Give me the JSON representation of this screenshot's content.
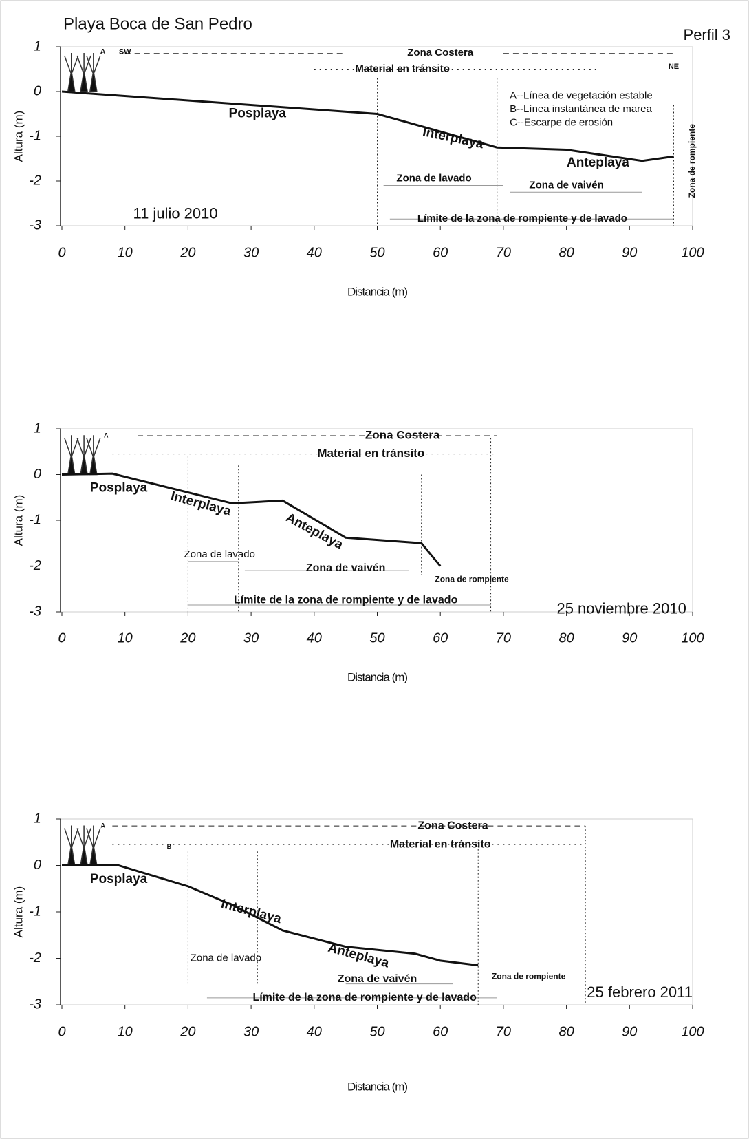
{
  "chart_data": [
    {
      "type": "line",
      "title": "Playa Boca de San Pedro",
      "subtitle": "Perfil 3",
      "x_label": "Distancia (m)",
      "y_label": "Altura (m)",
      "xlim": [
        0,
        100
      ],
      "ylim": [
        -3,
        1
      ],
      "xticks": [
        0,
        10,
        20,
        30,
        40,
        50,
        60,
        70,
        80,
        90,
        100
      ],
      "yticks": [
        -3,
        -2,
        -1,
        0,
        1
      ],
      "series": [
        {
          "color": "#111111",
          "x": [
            0,
            50,
            69,
            80,
            92,
            97
          ],
          "values": [
            0,
            -0.5,
            -1.25,
            -1.3,
            -1.55,
            -1.45
          ]
        }
      ],
      "annotations": [
        "A",
        "SW",
        "Zona Costera",
        "NE",
        "Material en tránsito",
        "Posplaya",
        "Interplaya",
        "Anteplaya",
        "A--Línea de vegetación estable",
        "B--Línea instantánea de marea",
        "C--Escarpe de erosión",
        "Zona de lavado",
        "Zona de vaivén",
        "Zona de rompiente",
        "Límite de la zona de rompiente y  de lavado",
        "11 julio  2010"
      ]
    },
    {
      "type": "line",
      "x_label": "Distancia (m)",
      "y_label": "Altura (m)",
      "xlim": [
        0,
        100
      ],
      "ylim": [
        -3,
        1
      ],
      "xticks": [
        0,
        10,
        20,
        30,
        40,
        50,
        60,
        70,
        80,
        90,
        100
      ],
      "yticks": [
        -3,
        -2,
        -1,
        0,
        1
      ],
      "series": [
        {
          "color": "#111111",
          "x": [
            0,
            8,
            27,
            35,
            45,
            57,
            60
          ],
          "values": [
            0,
            0.02,
            -0.63,
            -0.57,
            -1.38,
            -1.5,
            -2.0
          ]
        }
      ],
      "annotations": [
        "A",
        "Zona Costera",
        "Material en tránsito",
        "Posplaya",
        "Interplaya",
        "Anteplaya",
        "Zona de lavado",
        "Zona de vaivén",
        "Zona de rompiente",
        "Límite de la zona de rompiente y  de lavado",
        "25 noviembre 2010"
      ]
    },
    {
      "type": "line",
      "x_label": "Distancia (m)",
      "y_label": "Altura (m)",
      "xlim": [
        0,
        100
      ],
      "ylim": [
        -3,
        1
      ],
      "xticks": [
        0,
        10,
        20,
        30,
        40,
        50,
        60,
        70,
        80,
        90,
        100
      ],
      "yticks": [
        -3,
        -2,
        -1,
        0,
        1
      ],
      "series": [
        {
          "color": "#111111",
          "x": [
            0,
            9,
            20,
            27,
            35,
            45,
            56,
            60,
            66
          ],
          "values": [
            0,
            0,
            -0.45,
            -0.85,
            -1.4,
            -1.75,
            -1.9,
            -2.05,
            -2.15
          ]
        }
      ],
      "annotations": [
        "A",
        "B",
        "Zona Costera",
        "Material en tránsito",
        "Posplaya",
        "Interplaya",
        "Anteplaya",
        "Zona de lavado",
        "Zona de vaivén",
        "Zona de rompiente",
        "Límite de la zona de rompiente y  de lavado",
        "25 febrero 2011"
      ]
    }
  ]
}
